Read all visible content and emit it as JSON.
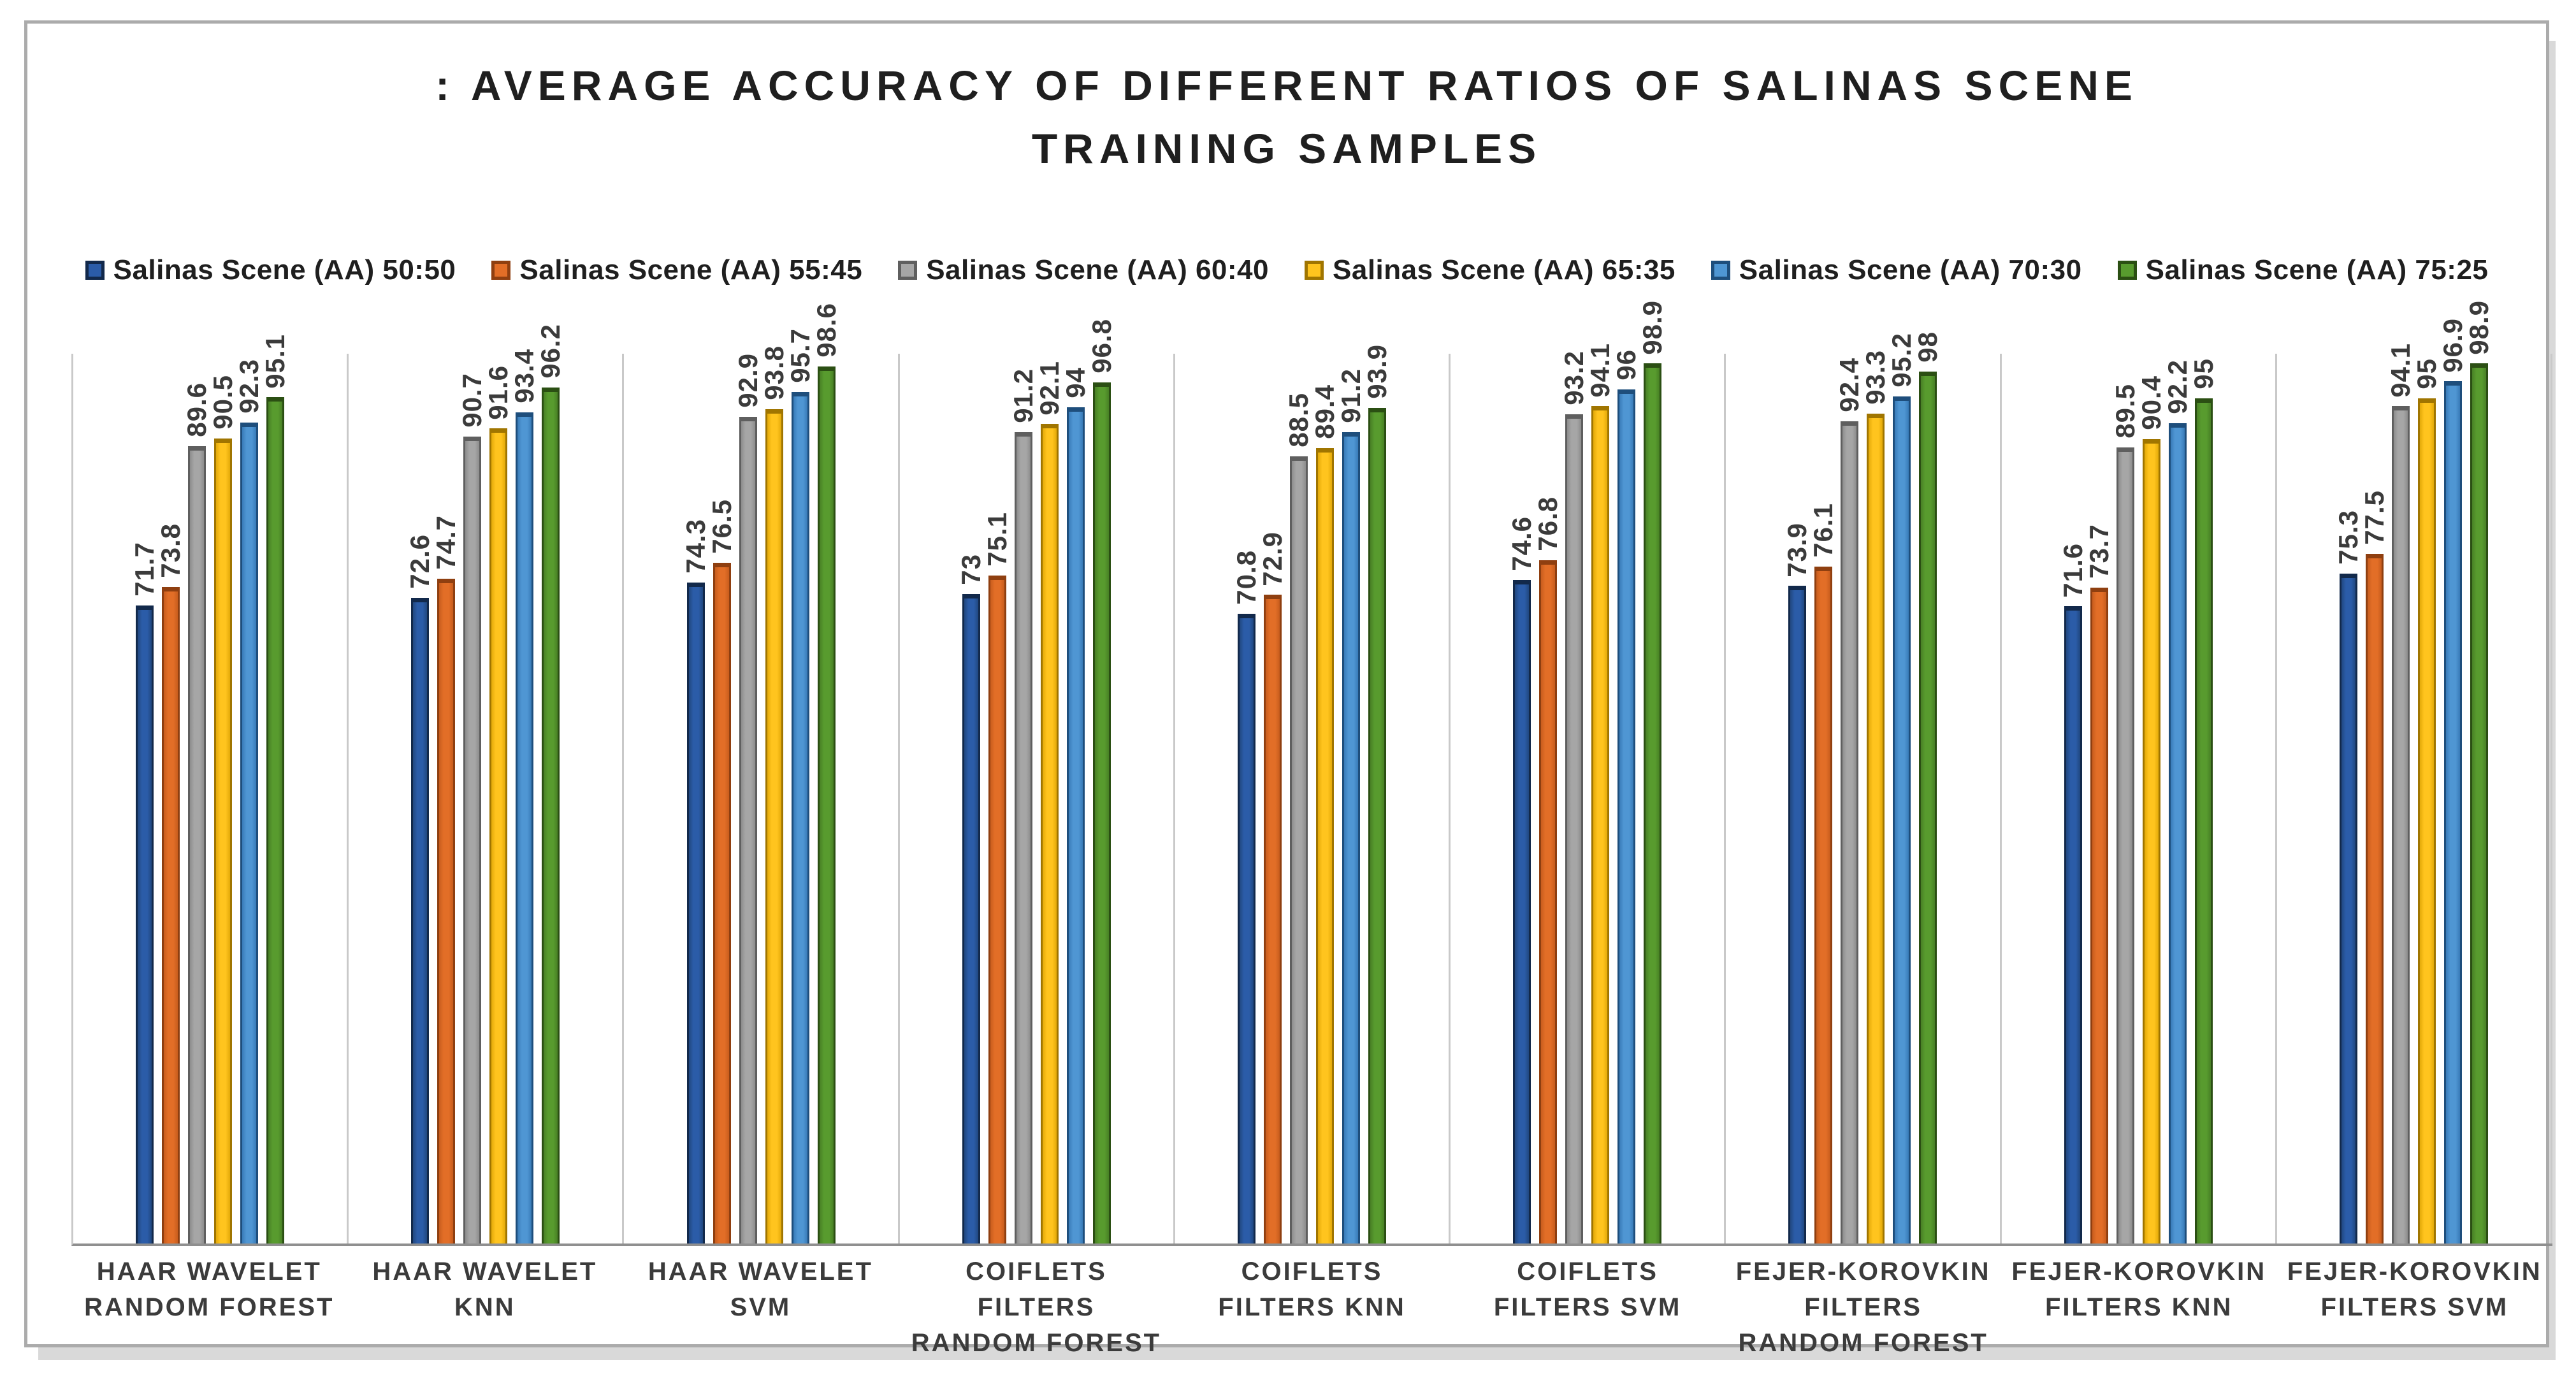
{
  "header": {
    "line1": ": AVERAGE ACCURACY OF DIFFERENT RATIOS OF SALINAS SCENE",
    "line2": "TRAINING SAMPLES"
  },
  "colors": {
    "frame_border": "#ABABAB",
    "frame_shadow": "#D9D9D9",
    "separator_line": "#C9C9C9",
    "baseline": "#8F8F8F",
    "title_text": "#1F1F1F",
    "label_text": "#3B3B3B"
  },
  "chart_data": {
    "type": "bar",
    "title": ": AVERAGE ACCURACY OF DIFFERENT RATIOS OF SALINAS SCENE TRAINING SAMPLES",
    "xlabel": "",
    "ylabel": "",
    "ylim": [
      0,
      100
    ],
    "legend_position": "top",
    "grid": "vertical category separators only",
    "value_labels": "rotated 90 degrees above bars",
    "categories": [
      "HAAR WAVELET\nRANDOM FOREST",
      "HAAR WAVELET\nKNN",
      "HAAR WAVELET\nSVM",
      "COIFLETS\nFILTERS\nRANDOM FOREST",
      "COIFLETS\nFILTERS KNN",
      "COIFLETS\nFILTERS SVM",
      "FEJER-KOROVKIN\nFILTERS\nRANDOM FOREST",
      "FEJER-KOROVKIN\nFILTERS KNN",
      "FEJER-KOROVKIN\nFILTERS SVM"
    ],
    "series": [
      {
        "name": "Salinas Scene (AA) 50:50",
        "color_mid": "#2B5CA8",
        "color_edge": "#1C3E6E",
        "color_rim": "#12294B",
        "values": [
          71.7,
          72.6,
          74.3,
          73,
          70.8,
          74.6,
          73.9,
          71.6,
          75.3
        ]
      },
      {
        "name": "Salinas Scene (AA) 55:45",
        "color_mid": "#E26E27",
        "color_edge": "#BC5519",
        "color_rim": "#8F3F10",
        "values": [
          73.8,
          74.7,
          76.5,
          75.1,
          72.9,
          76.8,
          76.1,
          73.7,
          77.5
        ]
      },
      {
        "name": "Salinas Scene (AA) 60:40",
        "color_mid": "#A6A6A6",
        "color_edge": "#828282",
        "color_rim": "#5F5F5F",
        "values": [
          89.6,
          90.7,
          92.9,
          91.2,
          88.5,
          93.2,
          92.4,
          89.5,
          94.1
        ]
      },
      {
        "name": "Salinas Scene (AA) 65:35",
        "color_mid": "#FFC41E",
        "color_edge": "#D79E00",
        "color_rim": "#A07500",
        "values": [
          90.5,
          91.6,
          93.8,
          92.1,
          89.4,
          94.1,
          93.3,
          90.4,
          95
        ]
      },
      {
        "name": "Salinas Scene (AA) 70:30",
        "color_mid": "#4F96D3",
        "color_edge": "#2F6FAC",
        "color_rim": "#1E4E7C",
        "values": [
          92.3,
          93.4,
          95.7,
          94,
          91.2,
          96,
          95.2,
          92.2,
          96.9
        ]
      },
      {
        "name": "Salinas Scene (AA) 75:25",
        "color_mid": "#589B2E",
        "color_edge": "#417521",
        "color_rim": "#2B4F13",
        "values": [
          95.1,
          96.2,
          98.6,
          96.8,
          93.9,
          98.9,
          98,
          95,
          98.9
        ]
      }
    ]
  }
}
